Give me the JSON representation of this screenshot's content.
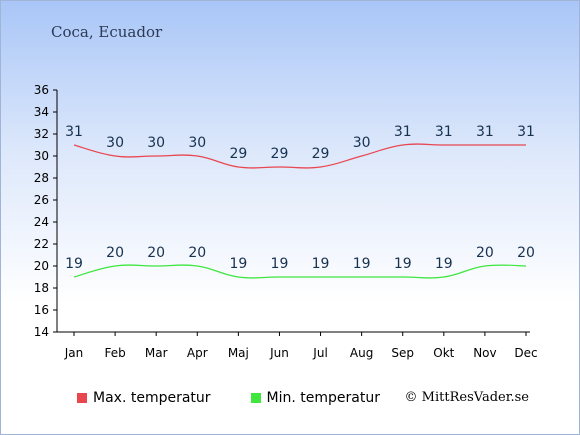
{
  "location": "Coca, Ecuador",
  "copyright": "© MittResVader.se",
  "colors": {
    "max": "#e8474f",
    "min": "#3ee63e"
  },
  "chart_data": {
    "type": "line",
    "categories": [
      "Jan",
      "Feb",
      "Mar",
      "Apr",
      "Maj",
      "Jun",
      "Jul",
      "Aug",
      "Sep",
      "Okt",
      "Nov",
      "Dec"
    ],
    "series": [
      {
        "name": "Max. temperatur",
        "values": [
          31,
          30,
          30,
          30,
          29,
          29,
          29,
          30,
          31,
          31,
          31,
          31
        ]
      },
      {
        "name": "Min. temperatur",
        "values": [
          19,
          20,
          20,
          20,
          19,
          19,
          19,
          19,
          19,
          19,
          20,
          20
        ]
      }
    ],
    "yticks": [
      14,
      16,
      18,
      20,
      22,
      24,
      26,
      28,
      30,
      32,
      34,
      36
    ],
    "ylim": [
      14,
      36
    ],
    "grid": false,
    "legend": "bottom-left"
  }
}
